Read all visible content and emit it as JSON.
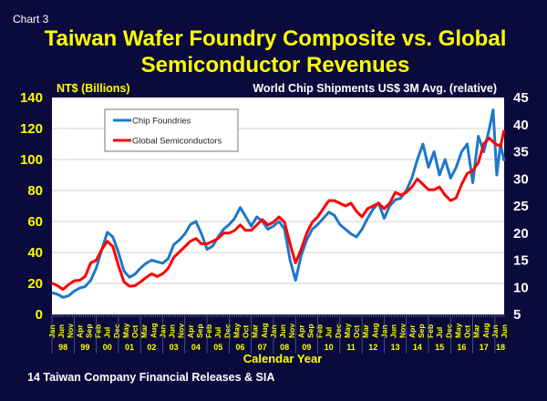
{
  "chart_label": "Chart 3",
  "chart_data": {
    "type": "line",
    "title_line1": "Taiwan Wafer Foundry Composite vs. Global",
    "title_line2": "Semiconductor Revenues",
    "ylabel_left": "NT$ (Billions)",
    "ylabel_right": "World Chip Shipments US$ 3M Avg. (relative)",
    "xlabel": "Calendar Year",
    "source": "14 Taiwan Company Financial Releases & SIA",
    "ylim_left": [
      0,
      140
    ],
    "yticks_left": [
      "0",
      "20",
      "40",
      "60",
      "80",
      "100",
      "120",
      "140"
    ],
    "ylim_right": [
      5,
      45
    ],
    "yticks_right": [
      "5",
      "10",
      "15",
      "20",
      "25",
      "30",
      "35",
      "40",
      "45"
    ],
    "xlim": [
      "1998-01",
      "2018-06"
    ],
    "month_tick_labels": [
      "Jan",
      "Jun",
      "Nov",
      "Apr",
      "Sep",
      "Feb",
      "Jul",
      "Dec",
      "May",
      "Oct",
      "Mar",
      "Aug",
      "Jan",
      "Jun",
      "Nov",
      "Apr",
      "Sep",
      "Feb",
      "Jul",
      "Dec",
      "May",
      "Oct",
      "Mar",
      "Aug",
      "Jan",
      "Jun",
      "Nov",
      "Apr",
      "Sep",
      "Feb",
      "Jul",
      "Dec",
      "May",
      "Oct",
      "Mar",
      "Aug",
      "Jan",
      "Jun",
      "Nov",
      "Apr",
      "Sep",
      "Feb",
      "Jul",
      "Dec",
      "May",
      "Oct",
      "Mar",
      "Aug",
      "Jan",
      "Jun"
    ],
    "year_labels": [
      "98",
      "99",
      "00",
      "01",
      "02",
      "03",
      "04",
      "05",
      "06",
      "07",
      "08",
      "09",
      "10",
      "11",
      "12",
      "13",
      "14",
      "15",
      "16",
      "17",
      "18"
    ],
    "grid": true,
    "legend_placement": "top-left",
    "background": "#0a0a3c",
    "series": [
      {
        "name": "Chip Foundries",
        "axis": "left",
        "color": "#1f77c8",
        "x": [
          "1998-01",
          "1998-04",
          "1998-07",
          "1998-10",
          "1999-01",
          "1999-04",
          "1999-07",
          "1999-10",
          "2000-01",
          "2000-04",
          "2000-07",
          "2000-10",
          "2001-01",
          "2001-04",
          "2001-07",
          "2001-10",
          "2002-01",
          "2002-04",
          "2002-07",
          "2002-10",
          "2003-01",
          "2003-04",
          "2003-07",
          "2003-10",
          "2004-01",
          "2004-04",
          "2004-07",
          "2004-10",
          "2005-01",
          "2005-04",
          "2005-07",
          "2005-10",
          "2006-01",
          "2006-04",
          "2006-07",
          "2006-10",
          "2007-01",
          "2007-04",
          "2007-07",
          "2007-10",
          "2008-01",
          "2008-04",
          "2008-07",
          "2008-10",
          "2009-01",
          "2009-04",
          "2009-07",
          "2009-10",
          "2010-01",
          "2010-04",
          "2010-07",
          "2010-10",
          "2011-01",
          "2011-04",
          "2011-07",
          "2011-10",
          "2012-01",
          "2012-04",
          "2012-07",
          "2012-10",
          "2013-01",
          "2013-04",
          "2013-07",
          "2013-10",
          "2014-01",
          "2014-04",
          "2014-07",
          "2014-10",
          "2015-01",
          "2015-04",
          "2015-07",
          "2015-10",
          "2016-01",
          "2016-04",
          "2016-07",
          "2016-10",
          "2017-01",
          "2017-04",
          "2017-07",
          "2017-10",
          "2017-12",
          "2018-02",
          "2018-04",
          "2018-06"
        ],
        "values": [
          14,
          13,
          11,
          12,
          15,
          17,
          18,
          22,
          30,
          42,
          53,
          50,
          40,
          28,
          24,
          26,
          30,
          33,
          35,
          34,
          33,
          36,
          45,
          48,
          52,
          58,
          60,
          52,
          42,
          44,
          50,
          55,
          58,
          62,
          69,
          63,
          57,
          63,
          60,
          55,
          57,
          60,
          55,
          35,
          22,
          38,
          48,
          55,
          58,
          62,
          66,
          64,
          58,
          55,
          52,
          50,
          55,
          62,
          68,
          72,
          62,
          70,
          74,
          75,
          80,
          88,
          100,
          110,
          95,
          105,
          90,
          100,
          88,
          95,
          105,
          110,
          85,
          115,
          105,
          120,
          132,
          90,
          110,
          99
        ]
      },
      {
        "name": "Global Semiconductors",
        "axis": "right",
        "color": "#ff0000",
        "x": [
          "1998-01",
          "1998-04",
          "1998-07",
          "1998-10",
          "1999-01",
          "1999-04",
          "1999-07",
          "1999-10",
          "2000-01",
          "2000-04",
          "2000-07",
          "2000-10",
          "2001-01",
          "2001-04",
          "2001-07",
          "2001-10",
          "2002-01",
          "2002-04",
          "2002-07",
          "2002-10",
          "2003-01",
          "2003-04",
          "2003-07",
          "2003-10",
          "2004-01",
          "2004-04",
          "2004-07",
          "2004-10",
          "2005-01",
          "2005-04",
          "2005-07",
          "2005-10",
          "2006-01",
          "2006-04",
          "2006-07",
          "2006-10",
          "2007-01",
          "2007-04",
          "2007-07",
          "2007-10",
          "2008-01",
          "2008-04",
          "2008-07",
          "2008-10",
          "2009-01",
          "2009-04",
          "2009-07",
          "2009-10",
          "2010-01",
          "2010-04",
          "2010-07",
          "2010-10",
          "2011-01",
          "2011-04",
          "2011-07",
          "2011-10",
          "2012-01",
          "2012-04",
          "2012-07",
          "2012-10",
          "2013-01",
          "2013-04",
          "2013-07",
          "2013-10",
          "2014-01",
          "2014-04",
          "2014-07",
          "2014-10",
          "2015-01",
          "2015-04",
          "2015-07",
          "2015-10",
          "2016-01",
          "2016-04",
          "2016-07",
          "2016-10",
          "2017-01",
          "2017-04",
          "2017-07",
          "2017-10",
          "2018-01",
          "2018-04",
          "2018-06"
        ],
        "values": [
          10.8,
          10.3,
          9.6,
          10.5,
          11.2,
          11.3,
          12,
          14.5,
          15,
          17,
          18.5,
          17.5,
          14,
          11,
          10.2,
          10.3,
          11,
          11.8,
          12.5,
          12,
          12.5,
          13.5,
          15.5,
          16.5,
          17.5,
          18.5,
          19,
          18,
          18,
          18.5,
          19,
          20,
          20,
          20.5,
          21.5,
          20.5,
          20.5,
          21.5,
          22.5,
          21.5,
          22,
          23,
          22,
          18,
          14.5,
          17,
          20,
          22,
          23,
          24.5,
          26,
          26,
          25.5,
          25,
          25.5,
          24,
          23,
          24.5,
          25,
          25.5,
          24.5,
          25.5,
          27.5,
          27,
          27.5,
          28.5,
          30,
          29,
          28,
          28,
          28.5,
          27,
          26,
          26.5,
          29,
          31,
          31.5,
          33,
          36.5,
          37.5,
          36.5,
          36,
          39
        ]
      }
    ]
  }
}
